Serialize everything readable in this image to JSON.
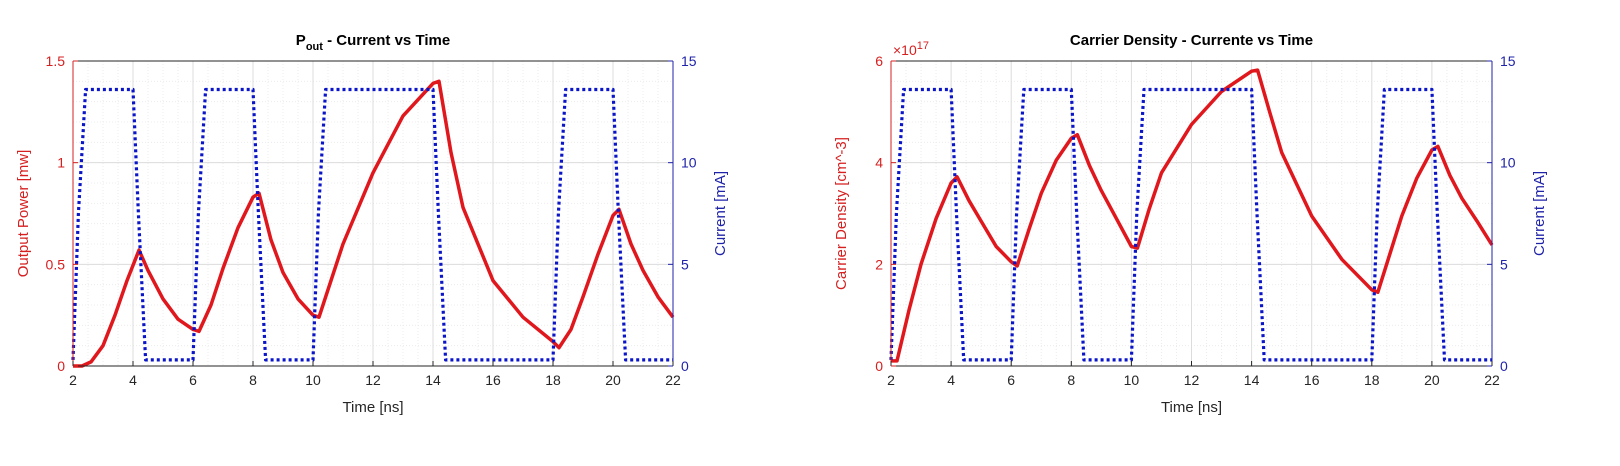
{
  "colors": {
    "left_axis": "#d62020",
    "right_axis": "#1f23a8",
    "power_line": "#e0171c",
    "current_line": "#0a14c8",
    "grid_major": "#dcdcdc",
    "grid_minor": "#ececec",
    "axis_black": "#262626"
  },
  "chart_data": [
    {
      "type": "line",
      "title": "P",
      "title_sub": "out",
      "title_suffix": " - Current vs Time",
      "xlabel": "Time [ns]",
      "ylabel_left": "Output Power [mw]",
      "ylabel_right": "Current [mA]",
      "exponent_label": "",
      "exponent_power": "",
      "xlim": [
        2,
        22
      ],
      "ylim_left": [
        0,
        1.5
      ],
      "ylim_right": [
        0,
        15
      ],
      "xticks": [
        "2",
        "4",
        "6",
        "8",
        "10",
        "12",
        "14",
        "16",
        "18",
        "20",
        "22"
      ],
      "yticks_left": [
        "0",
        "0.5",
        "1",
        "1.5"
      ],
      "yticks_right": [
        "0",
        "5",
        "10",
        "15"
      ],
      "grid": true,
      "series": [
        {
          "axis": "left",
          "style": "solid",
          "x": [
            2,
            2.3,
            2.6,
            3.0,
            3.4,
            3.8,
            4.2,
            4.5,
            5.0,
            5.5,
            6.0,
            6.2,
            6.6,
            7.0,
            7.5,
            8.0,
            8.2,
            8.6,
            9.0,
            9.5,
            10.0,
            10.2,
            10.6,
            11.0,
            12.0,
            13.0,
            14.0,
            14.2,
            14.6,
            15.0,
            16.0,
            17.0,
            18.0,
            18.2,
            18.6,
            19.0,
            19.5,
            20.0,
            20.2,
            20.6,
            21.0,
            21.5,
            22.0
          ],
          "y": [
            0.0,
            0.0,
            0.02,
            0.1,
            0.25,
            0.42,
            0.57,
            0.47,
            0.33,
            0.23,
            0.18,
            0.17,
            0.3,
            0.48,
            0.68,
            0.83,
            0.85,
            0.62,
            0.46,
            0.33,
            0.25,
            0.24,
            0.42,
            0.6,
            0.95,
            1.23,
            1.39,
            1.4,
            1.05,
            0.78,
            0.42,
            0.24,
            0.12,
            0.09,
            0.18,
            0.34,
            0.55,
            0.74,
            0.77,
            0.6,
            0.47,
            0.34,
            0.24
          ]
        },
        {
          "axis": "right",
          "style": "dotted",
          "x": [
            2,
            2.18,
            2.42,
            4.0,
            4.18,
            4.42,
            6.0,
            6.18,
            6.42,
            8.0,
            8.18,
            8.42,
            10.0,
            10.18,
            10.42,
            14.0,
            14.18,
            14.42,
            18.0,
            18.18,
            18.42,
            20.0,
            20.18,
            20.42,
            22.0
          ],
          "y": [
            0.3,
            7.5,
            13.6,
            13.6,
            7.5,
            0.3,
            0.3,
            7.5,
            13.6,
            13.6,
            7.5,
            0.3,
            0.3,
            7.5,
            13.6,
            13.6,
            7.5,
            0.3,
            0.3,
            7.5,
            13.6,
            13.6,
            7.5,
            0.3,
            0.3
          ]
        }
      ]
    },
    {
      "type": "line",
      "title": "Carrier Density - Currente vs Time",
      "title_sub": "",
      "title_suffix": "",
      "xlabel": "Time [ns]",
      "ylabel_left": "Carrier Density [cm^-3]",
      "ylabel_right": "Current [mA]",
      "exponent_label": "×10",
      "exponent_power": "17",
      "xlim": [
        2,
        22
      ],
      "ylim_left": [
        0,
        6
      ],
      "ylim_right": [
        0,
        15
      ],
      "xticks": [
        "2",
        "4",
        "6",
        "8",
        "10",
        "12",
        "14",
        "16",
        "18",
        "20",
        "22"
      ],
      "yticks_left": [
        "0",
        "2",
        "4",
        "6"
      ],
      "yticks_right": [
        "0",
        "5",
        "10",
        "15"
      ],
      "grid": true,
      "series": [
        {
          "axis": "left",
          "style": "solid",
          "x": [
            2,
            2.2,
            2.6,
            3.0,
            3.5,
            4.0,
            4.2,
            4.6,
            5.0,
            5.5,
            6.0,
            6.2,
            6.6,
            7.0,
            7.5,
            8.0,
            8.2,
            8.6,
            9.0,
            9.5,
            10.0,
            10.2,
            10.6,
            11.0,
            12.0,
            13.0,
            14.0,
            14.2,
            14.6,
            15.0,
            16.0,
            17.0,
            18.0,
            18.2,
            18.6,
            19.0,
            19.5,
            20.0,
            20.2,
            20.6,
            21.0,
            21.5,
            22.0
          ],
          "y": [
            0.1,
            0.1,
            1.1,
            2.0,
            2.9,
            3.6,
            3.72,
            3.25,
            2.85,
            2.35,
            2.05,
            1.97,
            2.7,
            3.4,
            4.05,
            4.48,
            4.55,
            3.95,
            3.45,
            2.9,
            2.35,
            2.32,
            3.1,
            3.8,
            4.75,
            5.4,
            5.8,
            5.82,
            5.0,
            4.2,
            2.95,
            2.1,
            1.5,
            1.45,
            2.2,
            2.95,
            3.7,
            4.25,
            4.32,
            3.75,
            3.3,
            2.85,
            2.38
          ]
        },
        {
          "axis": "right",
          "style": "dotted",
          "x": [
            2,
            2.18,
            2.42,
            4.0,
            4.18,
            4.42,
            6.0,
            6.18,
            6.42,
            8.0,
            8.18,
            8.42,
            10.0,
            10.18,
            10.42,
            14.0,
            14.18,
            14.42,
            18.0,
            18.18,
            18.42,
            20.0,
            20.18,
            20.42,
            22.0
          ],
          "y": [
            0.3,
            7.5,
            13.6,
            13.6,
            7.5,
            0.3,
            0.3,
            7.5,
            13.6,
            13.6,
            7.5,
            0.3,
            0.3,
            7.5,
            13.6,
            13.6,
            7.5,
            0.3,
            0.3,
            7.5,
            13.6,
            13.6,
            7.5,
            0.3,
            0.3
          ]
        }
      ]
    }
  ]
}
